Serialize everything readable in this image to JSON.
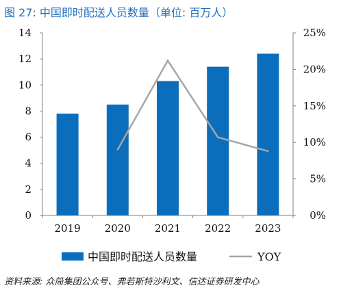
{
  "figure_title": "图 27:  中国即时配送人员数量（单位:  百万人）",
  "source_note": "资料来源:  众简集团公众号、弗若斯特沙利文、信达证券研发中心",
  "colors": {
    "bar": "#0a6ebd",
    "line": "#a6a6a6",
    "title": "#1f6fbf",
    "axis": "#808080"
  },
  "chart_data": {
    "type": "bar",
    "categories": [
      "2019",
      "2020",
      "2021",
      "2022",
      "2023"
    ],
    "series": [
      {
        "name": "中国即时配送人员数量",
        "type": "bar",
        "axis": "left",
        "values": [
          7.8,
          8.5,
          10.3,
          11.4,
          12.4
        ]
      },
      {
        "name": "YOY",
        "type": "line",
        "axis": "right",
        "values": [
          null,
          9.0,
          21.2,
          10.7,
          8.8
        ]
      }
    ],
    "y_left": {
      "ylim": [
        0,
        14
      ],
      "ticks": [
        "0",
        "2",
        "4",
        "6",
        "8",
        "10",
        "12",
        "14"
      ]
    },
    "y_right": {
      "ylim": [
        0,
        25
      ],
      "ticks": [
        "0%",
        "5%",
        "10%",
        "15%",
        "20%",
        "25%"
      ]
    },
    "grid": false,
    "legend": {
      "position": "bottom",
      "entries": [
        "中国即时配送人员数量",
        "YOY"
      ]
    }
  }
}
